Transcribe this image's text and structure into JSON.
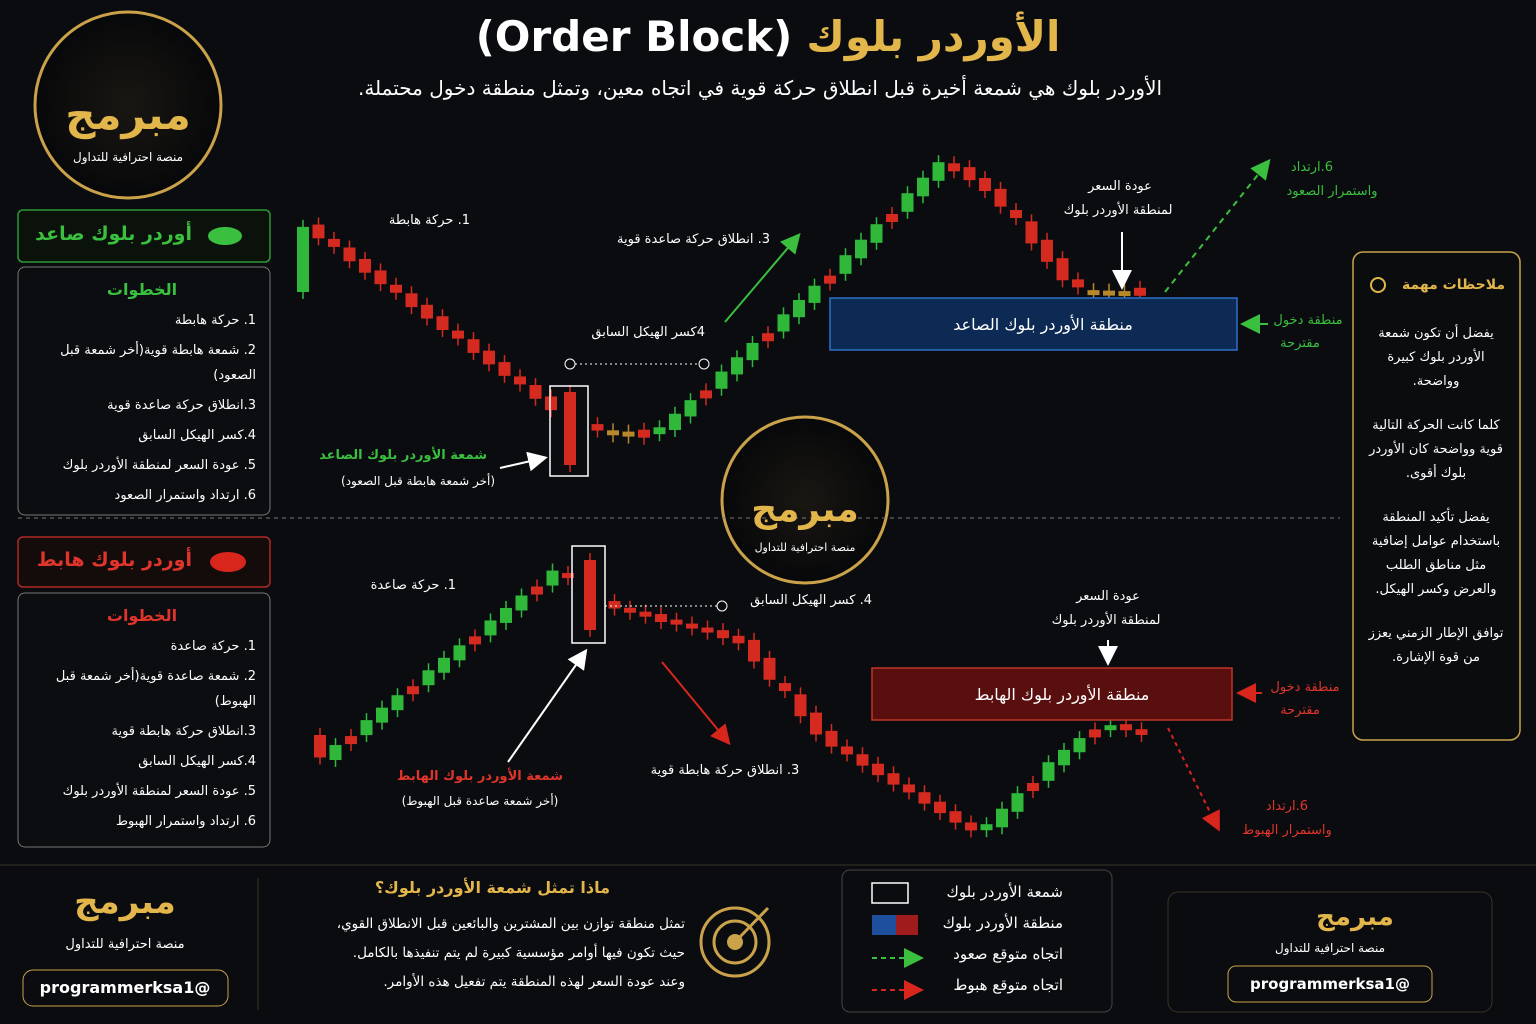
{
  "header": {
    "title_en": "(Order Block)",
    "title_ar": "الأوردر بلوك",
    "subtitle": "الأوردر بلوك هي شمعة أخيرة قبل انطلاق حركة قوية في اتجاه معين، وتمثل منطقة دخول محتملة."
  },
  "logo": {
    "name": "مبرمج",
    "tagline": "منصة احترافية للتداول"
  },
  "bullish": {
    "label": "أوردر بلوك صاعد",
    "steps_title": "الخطوات",
    "steps": [
      "1. حركة هابطة",
      "2. شمعة هابطة قوية(أخر شمعة قبل الصعود)",
      "3.انطلاق حركة صاعدة قوية",
      "4.كسر الهيكل السابق",
      "5. عودة السعر لمنطقة الأوردر بلوك",
      "6. ارتداد واستمرار الصعود"
    ]
  },
  "bearish": {
    "label": "أوردر بلوك هابط",
    "steps_title": "الخطوات",
    "steps": [
      "1. حركة صاعدة",
      "2. شمعة صاعدة قوية(أخر شمعة قبل الهبوط)",
      "3.انطلاق حركة هابطة قوية",
      "4.كسر الهيكل السابق",
      "5. عودة السعر لمنطقة الأوردر بلوك",
      "6. ارتداد واستمرار الهبوط"
    ]
  },
  "top_chart": {
    "move": "1. حركة هابطة",
    "impulse": "3. انطلاق حركة صاعدة قوية",
    "bos": "4كسر الهيكل السابق",
    "ob_label": "شمعة الأوردر بلوك الصاعد",
    "ob_note": "(أخر شمعة هابطة قبل الصعود)",
    "return": [
      "عودة السعر",
      "لمنطقة الأوردر بلوك"
    ],
    "zone": "منطقة الأوردر بلوك الصاعد",
    "entry": [
      "منطقة دخول",
      "مقترحة"
    ],
    "continuation": [
      "6.ارتداد",
      "واستمرار الصعود"
    ]
  },
  "bottom_chart": {
    "move": "1. حركة صاعدة",
    "bos": "4. كسر الهيكل السابق",
    "return": [
      "عودة السعر",
      "لمنطقة الأوردر بلوك"
    ],
    "zone": "منطقة الأوردر بلوك الهابط",
    "entry": [
      "منطقة دخول",
      "مقترحة"
    ],
    "ob_label": "شمعة الأوردر بلوك الهابط",
    "ob_note": "(أخر شمعة صاعدة قبل الهبوط)",
    "impulse": "3. انطلاق حركة هابطة قوية",
    "continuation": [
      "6.ارتداد",
      "واستمرار الهبوط"
    ]
  },
  "notes": {
    "title": "ملاحظات مهمة",
    "items": [
      "يفضل أن تكون شمعة الأوردر بلوك كبيرة وواضحة.",
      "كلما كانت الحركة التالية قوية وواضحة كان الأوردر بلوك أقوى.",
      "يفضل تأكيد المنطقة باستخدام عوامل إضافية مثل مناطق الطلب والعرض وكسر الهيكل.",
      "توافق الإطار الزمني يعزز من قوة الإشارة."
    ]
  },
  "footer": {
    "handle": "@programmerksa1",
    "question": "ماذا تمثل شمعة الأوردر بلوك؟",
    "answer": [
      "تمثل منطقة توازن بين المشترين والبائعين قبل الانطلاق القوي،",
      "حيث تكون فيها أوامر مؤسسية كبيرة لم يتم تنفيذها بالكامل.",
      "وعند عودة السعر لهذه المنطقة يتم تفعيل هذه الأوامر."
    ],
    "legend": [
      "شمعة الأوردر بلوك",
      "منطقة الأوردر بلوك",
      "اتجاه متوقع صعود",
      "اتجاه متوقع هبوط"
    ],
    "card_name": "مبرمج",
    "card_tagline": "منصة احترافية للتداول",
    "card_handle": "@programmerksa1"
  }
}
